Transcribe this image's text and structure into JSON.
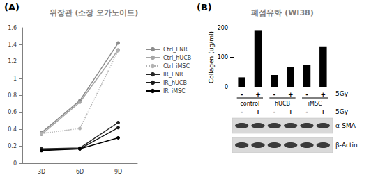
{
  "chart_data": [
    {
      "panel_label": "(A)",
      "type": "line",
      "title": "위장관 (소장 오가노이드)",
      "categories": [
        "3D",
        "6D",
        "9D"
      ],
      "series": [
        {
          "name": "Ctrl_ENR",
          "color": "#8c8c8c",
          "line_style": "solid",
          "marker": "circle",
          "values": [
            0.36,
            0.74,
            1.42
          ]
        },
        {
          "name": "Ctrl_hUCB",
          "color": "#a6a6a6",
          "line_style": "solid",
          "marker": "circle",
          "values": [
            0.34,
            0.72,
            1.34
          ]
        },
        {
          "name": "Ctrl_iMSC",
          "color": "#b3b3b3",
          "line_style": "dotted",
          "marker": "circle",
          "values": [
            0.35,
            0.41,
            1.33
          ]
        },
        {
          "name": "IR_ENR",
          "color": "#262626",
          "line_style": "solid",
          "marker": "circle",
          "values": [
            0.17,
            0.18,
            0.48
          ]
        },
        {
          "name": "IR_hUCB",
          "color": "#1a1a1a",
          "line_style": "solid",
          "marker": "circle",
          "values": [
            0.16,
            0.17,
            0.42
          ]
        },
        {
          "name": "IR_iMSC",
          "color": "#000000",
          "line_style": "solid",
          "marker": "circle",
          "values": [
            0.15,
            0.17,
            0.3
          ]
        }
      ],
      "ylim": [
        0,
        1.6
      ],
      "yticks": [
        0,
        0.2,
        0.4,
        0.6,
        0.8,
        1,
        1.2,
        1.4,
        1.6
      ],
      "grid": false,
      "legend": "right"
    },
    {
      "panel_label": "(B)",
      "type": "bar",
      "title": "폐섬유화 (WI38)",
      "ylabel": "Collagen (ug/ml)",
      "categories": [
        "-",
        "+",
        "-",
        "+",
        "-",
        "+"
      ],
      "values": [
        32,
        192,
        40,
        68,
        75,
        137
      ],
      "color": "#000000",
      "groups": [
        "control",
        "hUCB",
        "iMSC"
      ],
      "group_label": "5Gy",
      "ylim": [
        0,
        200
      ],
      "yticks": [
        0,
        100,
        200
      ],
      "grid": false,
      "blot": {
        "lanes": [
          "-",
          "+",
          "-",
          "+",
          "-",
          "+"
        ],
        "groups": [
          "control",
          "hUCB",
          "iMSC"
        ],
        "treatment": "5Gy",
        "rows": [
          "α-SMA",
          "β-Actin"
        ]
      }
    }
  ]
}
